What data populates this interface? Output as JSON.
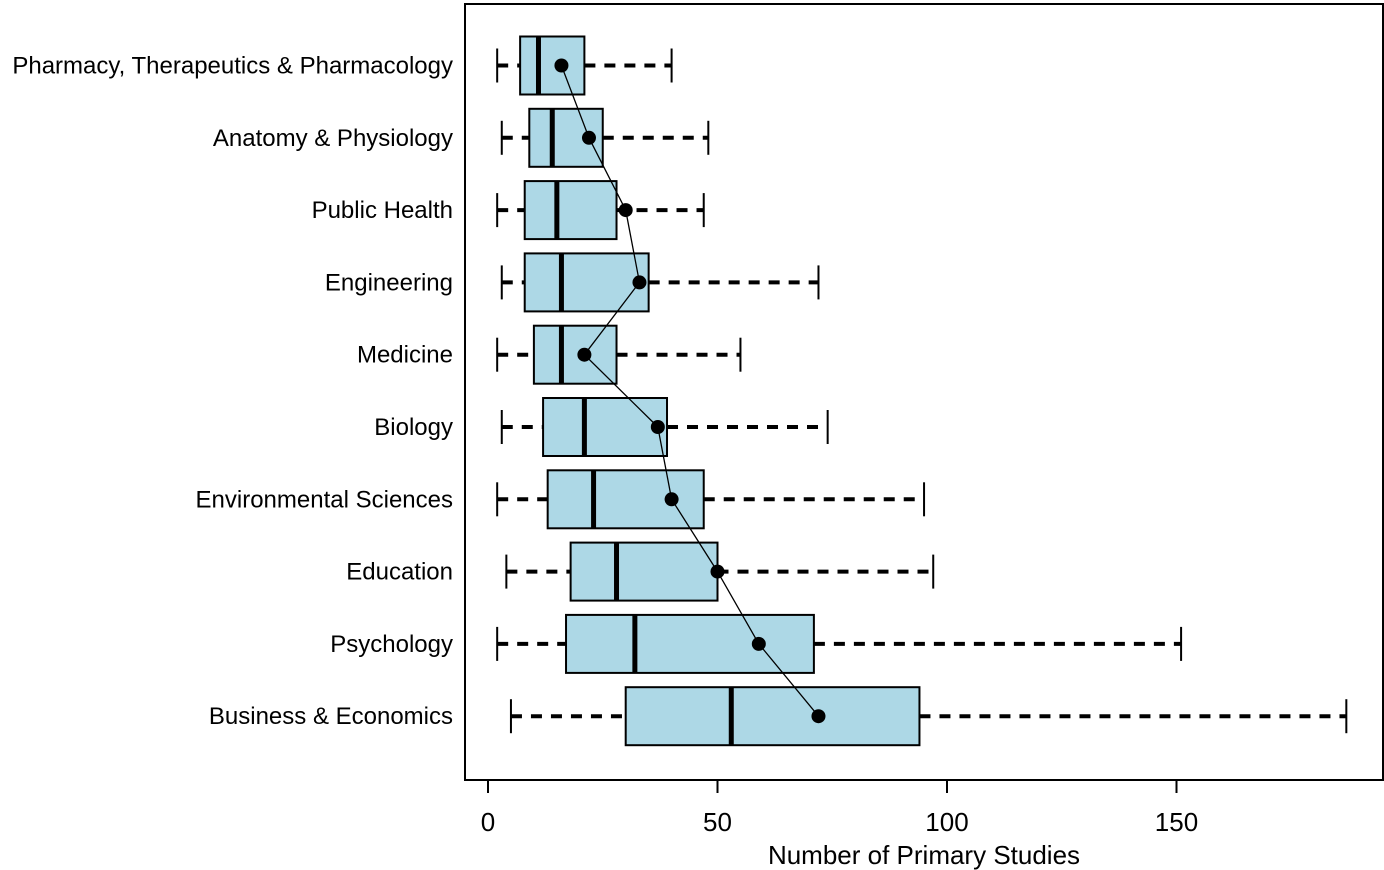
{
  "chart_data": {
    "type": "boxplot",
    "orientation": "horizontal",
    "title": "",
    "xlabel": "Number of Primary Studies",
    "ylabel": "",
    "x_ticks": [
      0,
      50,
      100,
      150
    ],
    "xlim": [
      -5,
      195
    ],
    "grid": false,
    "legend": "none",
    "box_fill": "#ADD8E6",
    "line_color": "#000000",
    "mean_points_connected": true,
    "categories": [
      "Pharmacy, Therapeutics & Pharmacology",
      "Anatomy & Physiology",
      "Public Health",
      "Engineering",
      "Medicine",
      "Biology",
      "Environmental Sciences",
      "Education",
      "Psychology",
      "Business & Economics"
    ],
    "series": [
      {
        "name": "Pharmacy, Therapeutics & Pharmacology",
        "min": 2,
        "q1": 7,
        "median": 11,
        "q3": 21,
        "max": 40,
        "mean": 16
      },
      {
        "name": "Anatomy & Physiology",
        "min": 3,
        "q1": 9,
        "median": 14,
        "q3": 25,
        "max": 48,
        "mean": 22
      },
      {
        "name": "Public Health",
        "min": 2,
        "q1": 8,
        "median": 15,
        "q3": 28,
        "max": 47,
        "mean": 30
      },
      {
        "name": "Engineering",
        "min": 3,
        "q1": 8,
        "median": 16,
        "q3": 35,
        "max": 72,
        "mean": 33
      },
      {
        "name": "Medicine",
        "min": 2,
        "q1": 10,
        "median": 16,
        "q3": 28,
        "max": 55,
        "mean": 21
      },
      {
        "name": "Biology",
        "min": 3,
        "q1": 12,
        "median": 21,
        "q3": 39,
        "max": 74,
        "mean": 37
      },
      {
        "name": "Environmental Sciences",
        "min": 2,
        "q1": 13,
        "median": 23,
        "q3": 47,
        "max": 95,
        "mean": 40
      },
      {
        "name": "Education",
        "min": 4,
        "q1": 18,
        "median": 28,
        "q3": 50,
        "max": 97,
        "mean": 50
      },
      {
        "name": "Psychology",
        "min": 2,
        "q1": 17,
        "median": 32,
        "q3": 71,
        "max": 151,
        "mean": 59
      },
      {
        "name": "Business & Economics",
        "min": 5,
        "q1": 30,
        "median": 53,
        "q3": 94,
        "max": 187,
        "mean": 72
      }
    ]
  }
}
